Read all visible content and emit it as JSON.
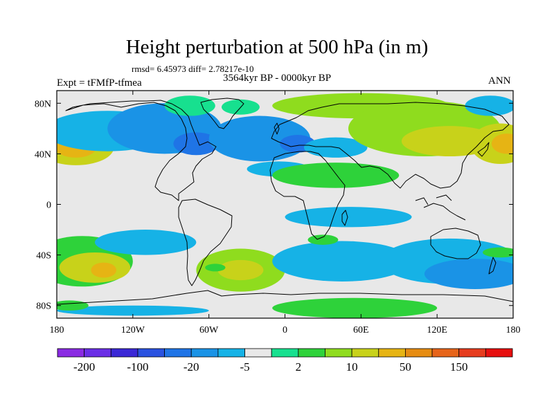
{
  "chart_data": {
    "type": "heatmap",
    "title": "Height perturbation at 500 hPa (in m)",
    "stats_text": "rmsd= 6.45973 diff= 2.78217e-10",
    "period": "3564kyr BP - 0000kyr BP",
    "experiment": "Expt = tFMfP-tfmea",
    "season": "ANN",
    "xlim": [
      -180,
      180
    ],
    "ylim": [
      -90,
      90
    ],
    "x_ticks": [
      {
        "value": -180,
        "label": "180"
      },
      {
        "value": -120,
        "label": "120W"
      },
      {
        "value": -60,
        "label": "60W"
      },
      {
        "value": 0,
        "label": "0"
      },
      {
        "value": 60,
        "label": "60E"
      },
      {
        "value": 120,
        "label": "120E"
      },
      {
        "value": 180,
        "label": "180"
      }
    ],
    "y_ticks": [
      {
        "value": 80,
        "label": "80N"
      },
      {
        "value": 40,
        "label": "40N"
      },
      {
        "value": 0,
        "label": "0"
      },
      {
        "value": -40,
        "label": "40S"
      },
      {
        "value": -80,
        "label": "80S"
      }
    ],
    "colorbar": {
      "colors": [
        "#8a2be2",
        "#6a2ee6",
        "#3b28d6",
        "#2a52e0",
        "#1f74e6",
        "#1a93e6",
        "#16b2e6",
        "#e8e8e8",
        "#17e08f",
        "#2ed23a",
        "#8fdc1e",
        "#c8d21a",
        "#e6b414",
        "#e68c12",
        "#e6641a",
        "#e63c1e",
        "#e60f0f"
      ],
      "labels": [
        {
          "boundary": 1,
          "text": "-200"
        },
        {
          "boundary": 3,
          "text": "-100"
        },
        {
          "boundary": 5,
          "text": "-20"
        },
        {
          "boundary": 7,
          "text": "-5"
        },
        {
          "boundary": 9,
          "text": "2"
        },
        {
          "boundary": 11,
          "text": "10"
        },
        {
          "boundary": 13,
          "text": "50"
        },
        {
          "boundary": 15,
          "text": "150"
        }
      ]
    },
    "field_anomalies": [
      {
        "lon": -165,
        "lat": 45,
        "rx": 30,
        "ry": 14,
        "level": 11
      },
      {
        "lon": -165,
        "lat": 45,
        "rx": 16,
        "ry": 8,
        "level": 12
      },
      {
        "lon": -140,
        "lat": 58,
        "rx": 50,
        "ry": 16,
        "level": 6
      },
      {
        "lon": -95,
        "lat": 60,
        "rx": 45,
        "ry": 20,
        "level": 5
      },
      {
        "lon": -70,
        "lat": 48,
        "rx": 18,
        "ry": 9,
        "level": 4
      },
      {
        "lon": -20,
        "lat": 52,
        "rx": 40,
        "ry": 18,
        "level": 5
      },
      {
        "lon": 10,
        "lat": 48,
        "rx": 14,
        "ry": 7,
        "level": 4
      },
      {
        "lon": 40,
        "lat": 45,
        "rx": 25,
        "ry": 8,
        "level": 6
      },
      {
        "lon": -75,
        "lat": 78,
        "rx": 20,
        "ry": 8,
        "level": 8
      },
      {
        "lon": -35,
        "lat": 77,
        "rx": 15,
        "ry": 6,
        "level": 8
      },
      {
        "lon": 60,
        "lat": 78,
        "rx": 70,
        "ry": 10,
        "level": 10
      },
      {
        "lon": 110,
        "lat": 60,
        "rx": 60,
        "ry": 22,
        "level": 10
      },
      {
        "lon": 130,
        "lat": 50,
        "rx": 38,
        "ry": 12,
        "level": 11
      },
      {
        "lon": 170,
        "lat": 48,
        "rx": 24,
        "ry": 16,
        "level": 11
      },
      {
        "lon": 175,
        "lat": 48,
        "rx": 12,
        "ry": 8,
        "level": 12
      },
      {
        "lon": 162,
        "lat": 78,
        "rx": 20,
        "ry": 8,
        "level": 6
      },
      {
        "lon": -5,
        "lat": 28,
        "rx": 25,
        "ry": 6,
        "level": 6
      },
      {
        "lon": 40,
        "lat": 23,
        "rx": 50,
        "ry": 10,
        "level": 9
      },
      {
        "lon": 50,
        "lat": -10,
        "rx": 50,
        "ry": 8,
        "level": 6
      },
      {
        "lon": -160,
        "lat": -45,
        "rx": 40,
        "ry": 20,
        "level": 9
      },
      {
        "lon": -150,
        "lat": -50,
        "rx": 28,
        "ry": 12,
        "level": 11
      },
      {
        "lon": -143,
        "lat": -52,
        "rx": 10,
        "ry": 6,
        "level": 12
      },
      {
        "lon": -110,
        "lat": -30,
        "rx": 40,
        "ry": 10,
        "level": 6
      },
      {
        "lon": -35,
        "lat": -52,
        "rx": 35,
        "ry": 17,
        "level": 10
      },
      {
        "lon": -35,
        "lat": -52,
        "rx": 18,
        "ry": 8,
        "level": 11
      },
      {
        "lon": -55,
        "lat": -50,
        "rx": 8,
        "ry": 3,
        "level": 9
      },
      {
        "lon": 45,
        "lat": -45,
        "rx": 55,
        "ry": 16,
        "level": 6
      },
      {
        "lon": 30,
        "lat": -28,
        "rx": 12,
        "ry": 4,
        "level": 9
      },
      {
        "lon": 130,
        "lat": -45,
        "rx": 55,
        "ry": 18,
        "level": 6
      },
      {
        "lon": 150,
        "lat": -55,
        "rx": 40,
        "ry": 12,
        "level": 5
      },
      {
        "lon": 170,
        "lat": -38,
        "rx": 14,
        "ry": 4,
        "level": 9
      },
      {
        "lon": -120,
        "lat": -84,
        "rx": 60,
        "ry": 4,
        "level": 6
      },
      {
        "lon": 55,
        "lat": -82,
        "rx": 65,
        "ry": 8,
        "level": 9
      },
      {
        "lon": -170,
        "lat": -80,
        "rx": 15,
        "ry": 4,
        "level": 9
      }
    ]
  }
}
